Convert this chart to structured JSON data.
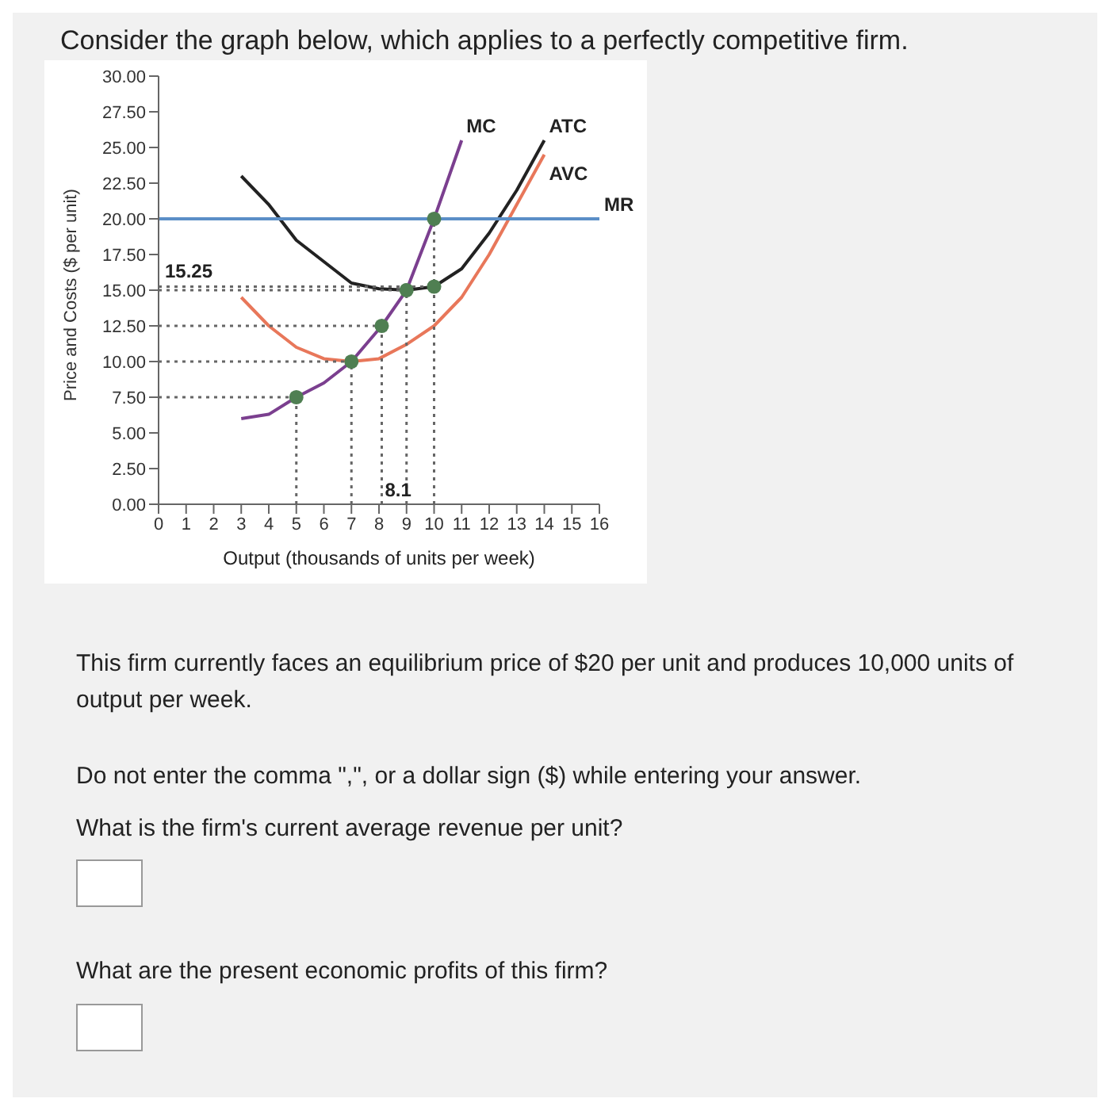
{
  "chart_data": {
    "type": "line",
    "title": "Consider the graph below, which applies to a perfectly competitive firm.",
    "xlabel": "Output (thousands of units per week)",
    "ylabel": "Price and Costs ($ per unit)",
    "xlim": [
      0,
      16
    ],
    "xticks": [
      0,
      1,
      2,
      3,
      4,
      5,
      6,
      7,
      8,
      9,
      10,
      11,
      12,
      13,
      14,
      15,
      16
    ],
    "ylim": [
      0,
      30
    ],
    "yticks": [
      {
        "value": 0,
        "label": "0.00"
      },
      {
        "value": 2.5,
        "label": "2.50"
      },
      {
        "value": 5,
        "label": "5.00"
      },
      {
        "value": 7.5,
        "label": "7.50"
      },
      {
        "value": 10,
        "label": "10.00"
      },
      {
        "value": 12.5,
        "label": "12.50"
      },
      {
        "value": 15,
        "label": "15.00"
      },
      {
        "value": 17.5,
        "label": "17.50"
      },
      {
        "value": 20,
        "label": "20.00"
      },
      {
        "value": 22.5,
        "label": "22.50"
      },
      {
        "value": 25,
        "label": "25.00"
      },
      {
        "value": 27.5,
        "label": "27.50"
      },
      {
        "value": 30,
        "label": "30.00"
      }
    ],
    "grid": false,
    "legend": false,
    "series": [
      {
        "name": "MC",
        "color": "#7b3f8f",
        "marker": "none",
        "x": [
          3,
          4,
          5,
          6,
          7,
          8.1,
          9,
          10,
          11
        ],
        "values": [
          6,
          6.3,
          7.5,
          8.5,
          10,
          12.5,
          15,
          20,
          25.5
        ]
      },
      {
        "name": "ATC",
        "color": "#222222",
        "marker": "none",
        "x": [
          3,
          4,
          5,
          6,
          7,
          8,
          9,
          10,
          11,
          12,
          13,
          14
        ],
        "values": [
          23,
          21,
          18.5,
          17,
          15.5,
          15.1,
          15,
          15.25,
          16.5,
          19,
          22,
          25.5
        ]
      },
      {
        "name": "AVC",
        "color": "#e8775a",
        "marker": "none",
        "x": [
          3,
          4,
          5,
          6,
          7,
          8,
          9,
          10,
          11,
          12,
          13,
          14
        ],
        "values": [
          14.5,
          12.5,
          11,
          10.2,
          10,
          10.2,
          11.2,
          12.5,
          14.5,
          17.5,
          21,
          24.5
        ]
      },
      {
        "name": "MR",
        "color": "#5b8fc7",
        "marker": "none",
        "x": [
          0,
          16
        ],
        "values": [
          20,
          20
        ]
      },
      {
        "color": "#666666",
        "marker": "none",
        "line_style": "dotted",
        "x": [
          0,
          10
        ],
        "values": [
          15.25,
          15.25
        ]
      },
      {
        "color": "#666666",
        "marker": "none",
        "line_style": "dotted",
        "x": [
          0,
          9
        ],
        "values": [
          15,
          15
        ]
      },
      {
        "color": "#666666",
        "marker": "none",
        "line_style": "dotted",
        "x": [
          0,
          8.1
        ],
        "values": [
          12.5,
          12.5
        ]
      },
      {
        "color": "#666666",
        "marker": "none",
        "line_style": "dotted",
        "x": [
          0,
          7
        ],
        "values": [
          10,
          10
        ]
      },
      {
        "color": "#666666",
        "marker": "none",
        "line_style": "dotted",
        "x": [
          0,
          5
        ],
        "values": [
          7.5,
          7.5
        ]
      },
      {
        "color": "#666666",
        "marker": "none",
        "line_style": "dotted",
        "x": [
          5,
          5
        ],
        "values": [
          0,
          7.5
        ]
      },
      {
        "color": "#666666",
        "marker": "none",
        "line_style": "dotted",
        "x": [
          7,
          7
        ],
        "values": [
          0,
          10
        ]
      },
      {
        "color": "#666666",
        "marker": "none",
        "line_style": "dotted",
        "x": [
          8.1,
          8.1
        ],
        "values": [
          0,
          12.5
        ]
      },
      {
        "color": "#666666",
        "marker": "none",
        "line_style": "dotted",
        "x": [
          9,
          9
        ],
        "values": [
          0,
          15
        ]
      },
      {
        "color": "#666666",
        "marker": "none",
        "line_style": "dotted",
        "x": [
          10,
          10
        ],
        "values": [
          0,
          20
        ]
      },
      {
        "type": "scatter",
        "color": "#4f7f52",
        "marker": "circle",
        "x": [
          5,
          7,
          8.1,
          9,
          10,
          10
        ],
        "values": [
          7.5,
          10,
          12.5,
          15,
          20,
          15.25
        ]
      }
    ],
    "annotations": [
      {
        "text": "15.25",
        "x": 0,
        "y": 15.25
      },
      {
        "text": "8.1",
        "x": 8.1,
        "y": 0
      },
      "This firm currently faces an equilibrium price of $20 per unit and produces 10,000 units of output per week.",
      "Do not enter the comma \",\", or a dollar sign ($) while entering your answer.",
      "What is the firm's current average revenue per unit?",
      "What are the present economic profits of this firm?"
    ]
  }
}
